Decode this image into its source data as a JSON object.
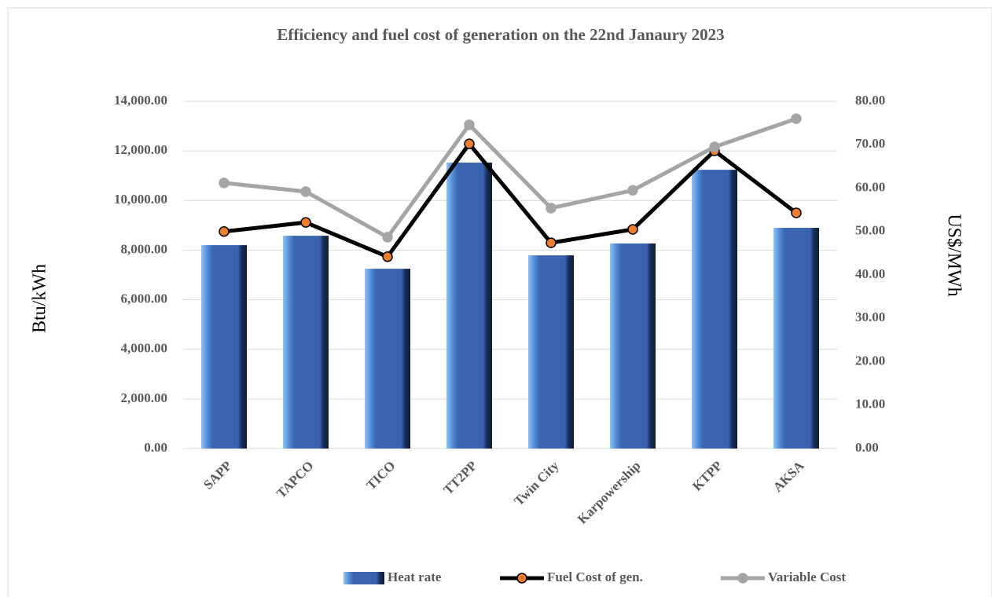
{
  "chart_data": {
    "type": "bar",
    "title": "Efficiency and fuel cost of generation on the 22nd Janaury 2023",
    "y_label": "Btu/kWh",
    "y2_label": "US$/MWh",
    "categories": [
      "SAPP",
      "TAPCO",
      "TICO",
      "TT2PP",
      "Twin City",
      "Karpowership",
      "KTPP",
      "AKSA"
    ],
    "series": [
      {
        "name": "Heat rate",
        "type": "bar",
        "color": "#3a64b0",
        "values": [
          8200,
          8580,
          7250,
          11530,
          7790,
          8270,
          11240,
          8900
        ]
      },
      {
        "name": "Fuel Cost of gen.",
        "type": "line",
        "axis": "y2",
        "color": "#000000",
        "marker_color": "#ed7d31",
        "values": [
          50.0,
          52.1,
          44.2,
          70.2,
          47.4,
          50.5,
          68.6,
          54.3
        ]
      },
      {
        "name": "Variable Cost",
        "type": "line",
        "axis": "y2",
        "color": "#a5a5a5",
        "marker_color": "#a5a5a5",
        "values": [
          61.2,
          59.2,
          48.7,
          74.6,
          55.4,
          59.5,
          69.5,
          76.0
        ]
      }
    ],
    "ylim": [
      0,
      14000
    ],
    "yticks": [
      {
        "value": 0,
        "label": "0.00"
      },
      {
        "value": 2000,
        "label": "2,000.00"
      },
      {
        "value": 4000,
        "label": "4,000.00"
      },
      {
        "value": 6000,
        "label": "6,000.00"
      },
      {
        "value": 8000,
        "label": "8,000.00"
      },
      {
        "value": 10000,
        "label": "10,000.00"
      },
      {
        "value": 12000,
        "label": "12,000.00"
      },
      {
        "value": 14000,
        "label": "14,000.00"
      }
    ],
    "y2lim": [
      0,
      80
    ],
    "y2ticks": [
      {
        "value": 0,
        "label": "0.00"
      },
      {
        "value": 10,
        "label": "10.00"
      },
      {
        "value": 20,
        "label": "20.00"
      },
      {
        "value": 30,
        "label": "30.00"
      },
      {
        "value": 40,
        "label": "40.00"
      },
      {
        "value": 50,
        "label": "50.00"
      },
      {
        "value": 60,
        "label": "60.00"
      },
      {
        "value": 70,
        "label": "70.00"
      },
      {
        "value": 80,
        "label": "80.00"
      }
    ],
    "grid": true,
    "legend": "bottom"
  }
}
